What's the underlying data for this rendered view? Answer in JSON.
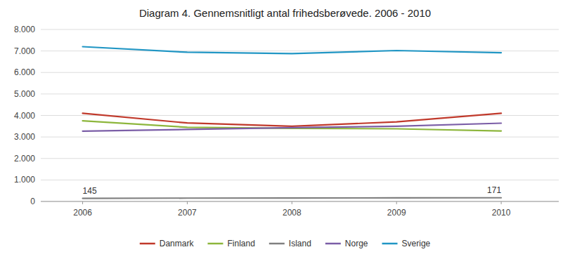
{
  "chart_data": {
    "type": "line",
    "title": "Diagram 4. Gennemsnitligt antal frihedsberøvede. 2006 - 2010",
    "x": [
      2006,
      2007,
      2008,
      2009,
      2010
    ],
    "xlim": [
      2005.6,
      2010.55
    ],
    "xticks": [
      2006,
      2007,
      2008,
      2009,
      2010
    ],
    "series": [
      {
        "name": "Danmark",
        "color": "#c0392b",
        "values": [
          4100,
          3650,
          3500,
          3700,
          4100
        ]
      },
      {
        "name": "Finland",
        "color": "#8db63c",
        "values": [
          3750,
          3450,
          3400,
          3380,
          3280
        ]
      },
      {
        "name": "Island",
        "color": "#808080",
        "values": [
          145,
          155,
          160,
          165,
          171
        ]
      },
      {
        "name": "Norge",
        "color": "#7b5ea7",
        "values": [
          3270,
          3350,
          3430,
          3500,
          3640
        ]
      },
      {
        "name": "Sverige",
        "color": "#2196c4",
        "values": [
          7200,
          6940,
          6880,
          7020,
          6920
        ]
      }
    ],
    "annotations": [
      {
        "text": "145",
        "x": 2006,
        "y": 145
      },
      {
        "text": "171",
        "x": 2010,
        "y": 171
      }
    ],
    "ylim": [
      0,
      8000
    ],
    "yticks": [
      0,
      {
        "value": 1000,
        "label": "1.000"
      },
      {
        "value": 2000,
        "label": "2.000"
      },
      {
        "value": 3000,
        "label": "3.000"
      },
      {
        "value": 4000,
        "label": "4.000"
      },
      {
        "value": 5000,
        "label": "5.000"
      },
      {
        "value": 6000,
        "label": "6.000"
      },
      {
        "value": 7000,
        "label": "7.000"
      },
      {
        "value": 8000,
        "label": "8.000"
      }
    ],
    "grid": true,
    "legend": "bottom"
  }
}
